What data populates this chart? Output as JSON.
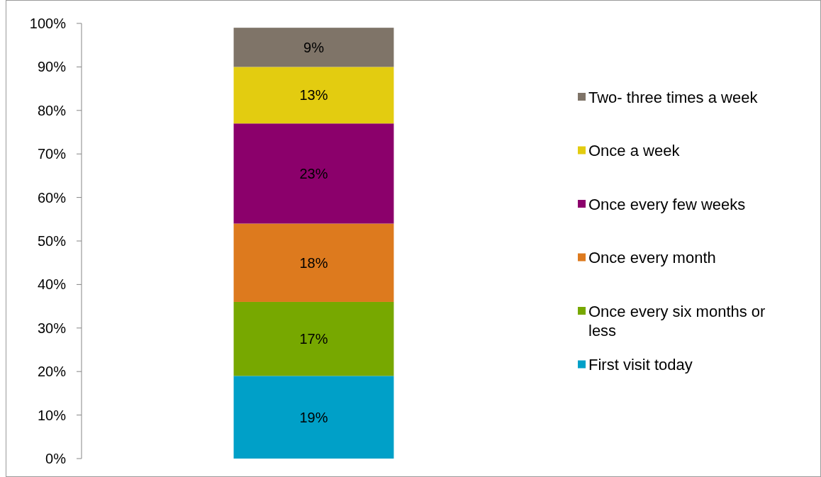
{
  "chart_data": {
    "type": "bar",
    "stacked": true,
    "categories": [
      null
    ],
    "series": [
      {
        "name": "First visit today",
        "color": "#00a0c8",
        "values": [
          19
        ],
        "value_labels": [
          "19%"
        ]
      },
      {
        "name": "Once every six months or less",
        "color": "#77a800",
        "values": [
          17
        ],
        "value_labels": [
          "17%"
        ]
      },
      {
        "name": "Once every month",
        "color": "#dd7a1e",
        "values": [
          18
        ],
        "value_labels": [
          "18%"
        ]
      },
      {
        "name": "Once every few weeks",
        "color": "#8b006b",
        "values": [
          23
        ],
        "value_labels": [
          "23%"
        ]
      },
      {
        "name": "Once a week",
        "color": "#e3cc10",
        "values": [
          13
        ],
        "value_labels": [
          "13%"
        ]
      },
      {
        "name": "Two- three times a week",
        "color": "#7f7468",
        "values": [
          9
        ],
        "value_labels": [
          "9%"
        ]
      }
    ],
    "ylim": [
      0,
      100
    ],
    "yticks": [
      {
        "value": 0,
        "label": "0%"
      },
      {
        "value": 10,
        "label": "10%"
      },
      {
        "value": 20,
        "label": "20%"
      },
      {
        "value": 30,
        "label": "30%"
      },
      {
        "value": 40,
        "label": "40%"
      },
      {
        "value": 50,
        "label": "50%"
      },
      {
        "value": 60,
        "label": "60%"
      },
      {
        "value": 70,
        "label": "70%"
      },
      {
        "value": 80,
        "label": "80%"
      },
      {
        "value": 90,
        "label": "90%"
      },
      {
        "value": 100,
        "label": "100%"
      }
    ],
    "legend": "right",
    "grid": false
  }
}
